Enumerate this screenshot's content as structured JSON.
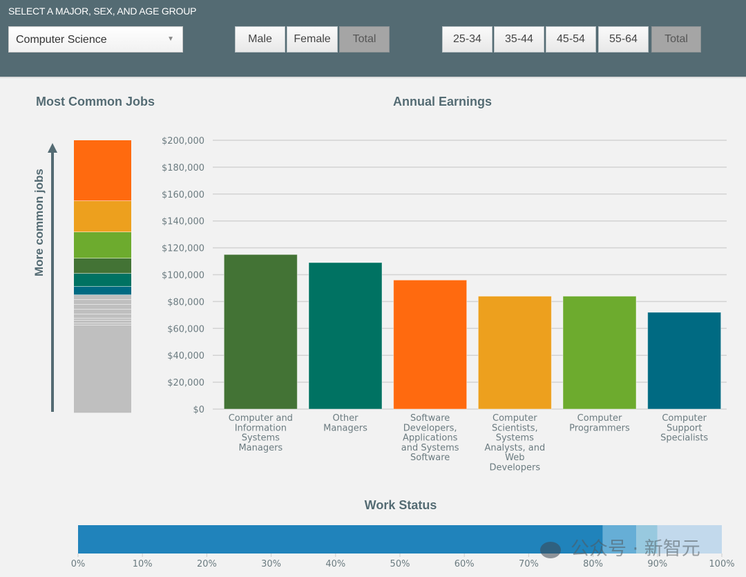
{
  "header": {
    "heading": "SELECT A MAJOR, SEX, AND AGE GROUP",
    "major_select": {
      "value": "Computer Science",
      "caret_icon": "▼"
    },
    "sex_buttons": [
      {
        "label": "Male",
        "active": false
      },
      {
        "label": "Female",
        "active": false
      },
      {
        "label": "Total",
        "active": true
      }
    ],
    "age_buttons": [
      {
        "label": "25-34",
        "active": false
      },
      {
        "label": "35-44",
        "active": false
      },
      {
        "label": "45-54",
        "active": false
      },
      {
        "label": "55-64",
        "active": false
      },
      {
        "label": "Total",
        "active": true
      }
    ]
  },
  "most_common_jobs": {
    "title": "Most Common Jobs",
    "axis_label": "More common jobs",
    "segments": [
      {
        "share": 22.3,
        "color": "#ff6a0f"
      },
      {
        "share": 11.4,
        "color": "#eda01e"
      },
      {
        "share": 9.6,
        "color": "#6dab2e"
      },
      {
        "share": 5.6,
        "color": "#437335"
      },
      {
        "share": 4.8,
        "color": "#007262"
      },
      {
        "share": 3.0,
        "color": "#006a82"
      },
      {
        "share": 1.8,
        "color": "#bfbfbf"
      },
      {
        "share": 1.8,
        "color": "#bfbfbf"
      },
      {
        "share": 1.8,
        "color": "#bfbfbf"
      },
      {
        "share": 1.6,
        "color": "#bfbfbf"
      },
      {
        "share": 1.5,
        "color": "#bfbfbf"
      },
      {
        "share": 1.0,
        "color": "#bfbfbf"
      },
      {
        "share": 0.8,
        "color": "#bfbfbf"
      },
      {
        "share": 0.8,
        "color": "#bfbfbf"
      },
      {
        "share": 32.2,
        "color": "#bfbfbf"
      }
    ]
  },
  "chart_data": [
    {
      "type": "bar",
      "title": "Annual Earnings",
      "xlabel": "",
      "ylabel": "",
      "ylim": [
        0,
        200000
      ],
      "yticks": [
        0,
        20000,
        40000,
        60000,
        80000,
        100000,
        120000,
        140000,
        160000,
        180000,
        200000
      ],
      "ytick_labels": [
        "$0",
        "$20,000",
        "$40,000",
        "$60,000",
        "$80,000",
        "$100,000",
        "$120,000",
        "$140,000",
        "$160,000",
        "$180,000",
        "$200,000"
      ],
      "grid": true,
      "categories": [
        [
          "Computer and",
          "Information",
          "Systems",
          "Managers"
        ],
        [
          "Other",
          "Managers"
        ],
        [
          "Software",
          "Developers,",
          "Applications",
          "and Systems",
          "Software"
        ],
        [
          "Computer",
          "Scientists,",
          "Systems",
          "Analysts, and",
          "Web",
          "Developers"
        ],
        [
          "Computer",
          "Programmers"
        ],
        [
          "Computer",
          "Support",
          "Specialists"
        ]
      ],
      "values": [
        115000,
        109000,
        96000,
        84000,
        84000,
        72000
      ],
      "colors": [
        "#437335",
        "#007262",
        "#ff6a0f",
        "#eda01e",
        "#6dab2e",
        "#006a82"
      ]
    },
    {
      "type": "bar",
      "orientation": "horizontal-stacked",
      "title": "Work Status",
      "xlim": [
        0,
        100
      ],
      "xtick_labels": [
        "0%",
        "10%",
        "20%",
        "30%",
        "40%",
        "50%",
        "60%",
        "70%",
        "80%",
        "90%",
        "100%"
      ],
      "values": [
        81.5,
        5.2,
        3.3,
        10.0
      ],
      "colors": [
        "#2083bb",
        "#66aed6",
        "#98c9df",
        "#c2d9ec"
      ]
    }
  ],
  "watermark": {
    "text": "公众号 · 新智元",
    "icon": "wechat-icon"
  }
}
